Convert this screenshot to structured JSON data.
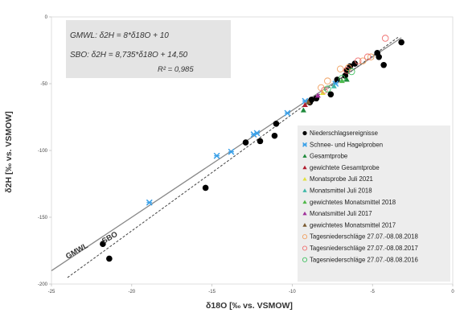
{
  "chart_data": {
    "type": "scatter",
    "xlabel": "δ18O [‰ vs. VSMOW]",
    "ylabel": "δ2H [‰ vs. VSMOW]",
    "xlim": [
      -25,
      0
    ],
    "ylim": [
      -200,
      0
    ],
    "xticks": [
      -25,
      -20,
      -15,
      -10,
      -5,
      0
    ],
    "yticks": [
      0,
      -50,
      -100,
      -150,
      -200
    ],
    "grid": false,
    "legend_placement": "bottom-right",
    "equations": {
      "gmwl": "GMWL: δ2H = 8*δ18O + 10",
      "sbo": "SBO: δ2H  = 8,735*δ18O + 14,50",
      "r2": "R² = 0,985"
    },
    "lines": [
      {
        "label": "GMWL",
        "slope": 8,
        "intercept": 10,
        "style": "solid",
        "color": "#888888",
        "x_range": [
          -25,
          -3.2
        ]
      },
      {
        "label": "SBO",
        "slope": 8.735,
        "intercept": 14.5,
        "style": "dashed",
        "color": "#444444",
        "x_range": [
          -24,
          -3.4
        ]
      }
    ],
    "series": [
      {
        "name": "Niederschlagsereignisse",
        "marker": "circle",
        "color": "#000000",
        "filled": true,
        "points": [
          [
            -21.8,
            -170
          ],
          [
            -21.4,
            -181
          ],
          [
            -15.4,
            -128
          ],
          [
            -12.9,
            -94
          ],
          [
            -12,
            -93
          ],
          [
            -11.1,
            -89
          ],
          [
            -11,
            -80
          ],
          [
            -8.9,
            -64
          ],
          [
            -8.8,
            -62
          ],
          [
            -8.5,
            -61
          ],
          [
            -7.6,
            -58
          ],
          [
            -7.2,
            -47
          ],
          [
            -6.7,
            -44
          ],
          [
            -6.6,
            -40
          ],
          [
            -6.4,
            -37
          ],
          [
            -6.1,
            -35
          ],
          [
            -4.7,
            -27
          ],
          [
            -4.6,
            -30
          ],
          [
            -4.3,
            -36
          ],
          [
            -3.2,
            -19
          ]
        ]
      },
      {
        "name": "Schnee- und Hagelproben",
        "marker": "x",
        "color": "#3aa0e8",
        "filled": false,
        "points": [
          [
            -18.9,
            -139
          ],
          [
            -14.7,
            -104
          ],
          [
            -13.8,
            -101
          ],
          [
            -12.4,
            -88
          ],
          [
            -12.2,
            -87
          ],
          [
            -10.3,
            -72
          ],
          [
            -9.2,
            -63
          ],
          [
            -7.3,
            -50
          ]
        ]
      },
      {
        "name": "Gesamtprobe",
        "marker": "triangle",
        "color": "#1e8a3a",
        "filled": true,
        "points": [
          [
            -9.3,
            -70
          ],
          [
            -6.6,
            -47
          ]
        ]
      },
      {
        "name": "gewichtete Gesamtprobe",
        "marker": "triangle",
        "color": "#b01c2e",
        "filled": true,
        "points": [
          [
            -9.2,
            -66
          ]
        ]
      },
      {
        "name": "Monatsprobe Juli 2021",
        "marker": "triangle",
        "color": "#e0e040",
        "filled": true,
        "points": [
          [
            -8.1,
            -57
          ]
        ]
      },
      {
        "name": "Monatsmittel Juli 2018",
        "marker": "triangle",
        "color": "#40b8a8",
        "filled": true,
        "points": [
          [
            -7.4,
            -52
          ]
        ]
      },
      {
        "name": "gewichtetes Monatsmittel 2018",
        "marker": "triangle",
        "color": "#50b848",
        "filled": true,
        "points": [
          [
            -6.9,
            -48
          ]
        ]
      },
      {
        "name": "Monatsmittel Juli 2017",
        "marker": "triangle",
        "color": "#a0309a",
        "filled": true,
        "points": [
          [
            -8.4,
            -59
          ]
        ]
      },
      {
        "name": "gewichtetes Monatsmittel 2017",
        "marker": "triangle",
        "color": "#7a5a30",
        "filled": true,
        "points": [
          [
            -9.0,
            -64
          ]
        ]
      },
      {
        "name": "Tagesniederschläge 27.07.-08.08.2018",
        "marker": "circle",
        "color": "#f0a060",
        "filled": false,
        "points": [
          [
            -8.2,
            -53
          ],
          [
            -7.8,
            -48
          ],
          [
            -7.0,
            -39
          ],
          [
            -6.5,
            -38
          ],
          [
            -5.6,
            -33
          ],
          [
            -5.1,
            -30
          ]
        ]
      },
      {
        "name": "Tagesniederschläge 27.07.-08.08.2017",
        "marker": "circle",
        "color": "#f07070",
        "filled": false,
        "points": [
          [
            -8.0,
            -55
          ],
          [
            -6.6,
            -40
          ],
          [
            -5.9,
            -33
          ],
          [
            -5.3,
            -30
          ],
          [
            -4.2,
            -16
          ]
        ]
      },
      {
        "name": "Tagesniederschläge 27.07.-08.08.2016",
        "marker": "circle",
        "color": "#40c060",
        "filled": false,
        "points": [
          [
            -7.8,
            -54
          ],
          [
            -6.9,
            -46
          ],
          [
            -6.3,
            -41
          ]
        ]
      }
    ]
  }
}
